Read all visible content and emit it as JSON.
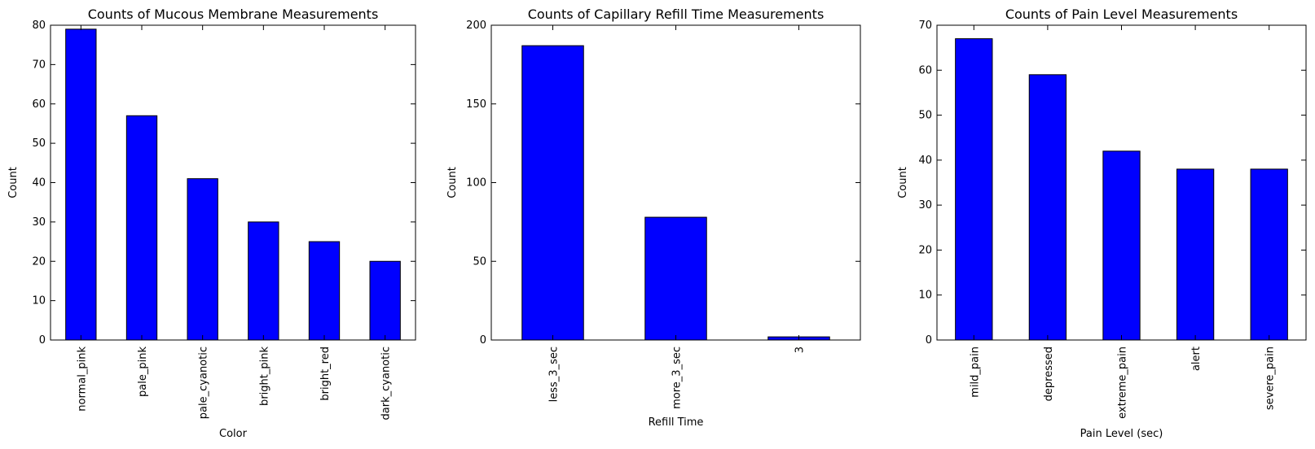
{
  "chart_data": [
    {
      "type": "bar",
      "title": "Counts of Mucous Membrane Measurements",
      "xlabel": "Color",
      "ylabel": "Count",
      "categories": [
        "normal_pink",
        "pale_pink",
        "pale_cyanotic",
        "bright_pink",
        "bright_red",
        "dark_cyanotic"
      ],
      "values": [
        79,
        57,
        41,
        30,
        25,
        20
      ],
      "ylim": [
        0,
        80
      ],
      "yticks": [
        0,
        10,
        20,
        30,
        40,
        50,
        60,
        70,
        80
      ],
      "bar_color": "#0000ff",
      "grid": false,
      "legend": false
    },
    {
      "type": "bar",
      "title": "Counts of Capillary Refill Time Measurements",
      "xlabel": "Refill Time",
      "ylabel": "Count",
      "categories": [
        "less_3_sec",
        "more_3_sec",
        "3"
      ],
      "values": [
        187,
        78,
        2
      ],
      "ylim": [
        0,
        200
      ],
      "yticks": [
        0,
        50,
        100,
        150,
        200
      ],
      "bar_color": "#0000ff",
      "grid": false,
      "legend": false
    },
    {
      "type": "bar",
      "title": "Counts of Pain Level Measurements",
      "xlabel": "Pain Level (sec)",
      "ylabel": "Count",
      "categories": [
        "mild_pain",
        "depressed",
        "extreme_pain",
        "alert",
        "severe_pain"
      ],
      "values": [
        67,
        59,
        42,
        38,
        38
      ],
      "ylim": [
        0,
        70
      ],
      "yticks": [
        0,
        10,
        20,
        30,
        40,
        50,
        60,
        70
      ],
      "bar_color": "#0000ff",
      "grid": false,
      "legend": false
    }
  ]
}
